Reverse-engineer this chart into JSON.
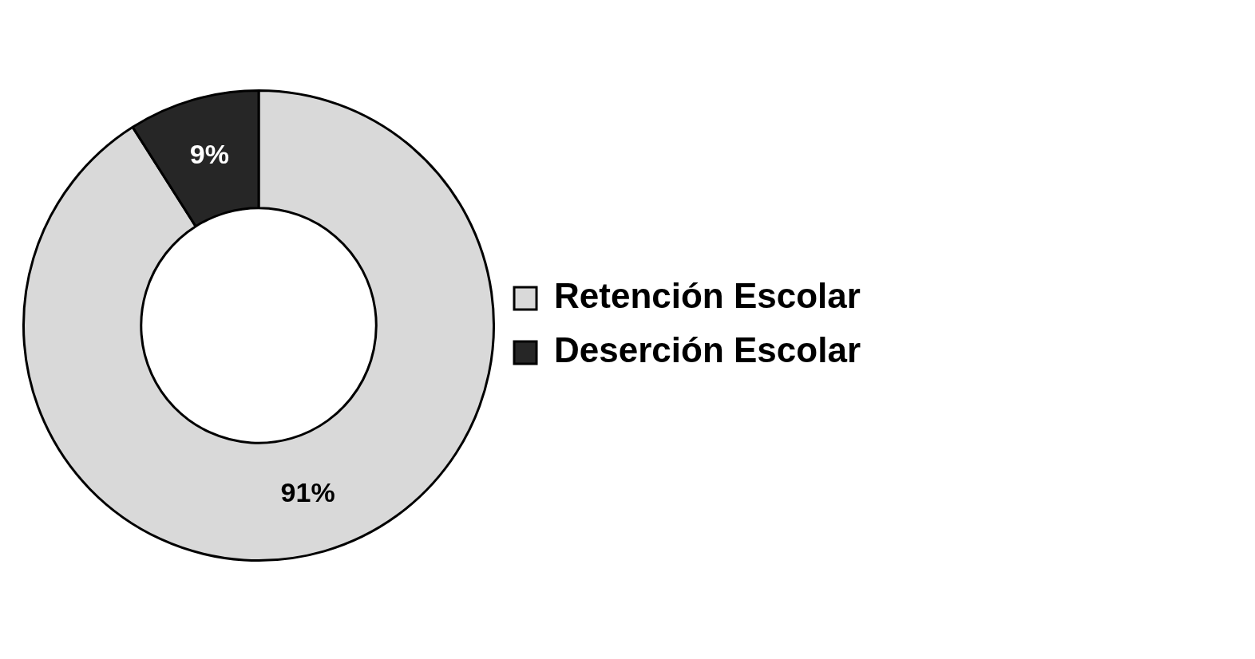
{
  "chart_data": {
    "type": "donut",
    "categories": [
      "Retención Escolar",
      "Deserción Escolar"
    ],
    "values": [
      91,
      9
    ],
    "value_labels": [
      "91%",
      "9%"
    ],
    "colors": [
      "#d9d9d9",
      "#262626"
    ],
    "legend": "right"
  }
}
